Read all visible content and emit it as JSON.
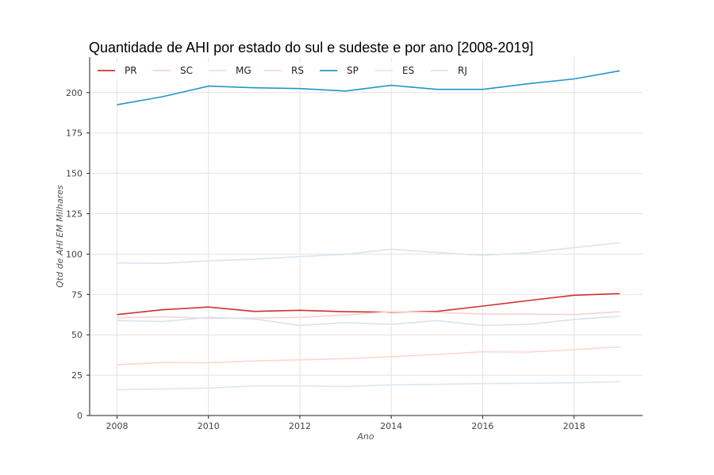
{
  "chart_data": {
    "type": "line",
    "title": "Quantidade de AHI por estado do sul e sudeste e por ano [2008-2019]",
    "xlabel": "Ano",
    "ylabel": "Qtd de AHI EM Milhares",
    "x": [
      2008,
      2009,
      2010,
      2011,
      2012,
      2013,
      2014,
      2015,
      2016,
      2017,
      2018,
      2019
    ],
    "xticks": [
      2008,
      2010,
      2012,
      2014,
      2016,
      2018
    ],
    "yticks": [
      0,
      25,
      50,
      75,
      100,
      125,
      150,
      175,
      200
    ],
    "xlim": [
      2007.4,
      2019.5
    ],
    "ylim": [
      0,
      222
    ],
    "grid": true,
    "legend_position": "top-left",
    "series": [
      {
        "name": "PR",
        "color": "#d0312d",
        "values": [
          62.5,
          65.5,
          67.2,
          64.5,
          65.2,
          64.3,
          64.0,
          64.5,
          67.8,
          71.2,
          74.5,
          75.5
        ]
      },
      {
        "name": "SC",
        "color": "#f6d3d2",
        "values": [
          60.5,
          61.2,
          60.2,
          60.3,
          60.8,
          62.3,
          64.3,
          63.8,
          62.8,
          62.8,
          62.5,
          64.3
        ]
      },
      {
        "name": "MG",
        "color": "#d6e6f2",
        "values": [
          94.5,
          94.2,
          95.8,
          96.8,
          98.5,
          99.8,
          103.0,
          101.0,
          99.2,
          100.8,
          104.0,
          107.0
        ]
      },
      {
        "name": "RS",
        "color": "#f9d8cf",
        "values": [
          31.5,
          32.8,
          32.7,
          33.8,
          34.5,
          35.2,
          36.5,
          37.8,
          39.5,
          39.3,
          40.8,
          42.5
        ]
      },
      {
        "name": "SP",
        "color": "#2196c8",
        "values": [
          192.5,
          197.5,
          204.0,
          203.0,
          202.5,
          201.0,
          204.5,
          202.0,
          202.0,
          205.5,
          208.5,
          213.5
        ]
      },
      {
        "name": "ES",
        "color": "#d8e8f3",
        "values": [
          16.0,
          16.5,
          17.0,
          18.3,
          18.3,
          18.0,
          19.0,
          19.3,
          19.8,
          20.0,
          20.3,
          21.0
        ]
      },
      {
        "name": "RJ",
        "color": "#d4e4f0",
        "values": [
          58.8,
          58.2,
          60.8,
          59.8,
          55.8,
          57.5,
          56.5,
          58.8,
          55.8,
          56.5,
          59.5,
          61.5
        ]
      }
    ]
  }
}
